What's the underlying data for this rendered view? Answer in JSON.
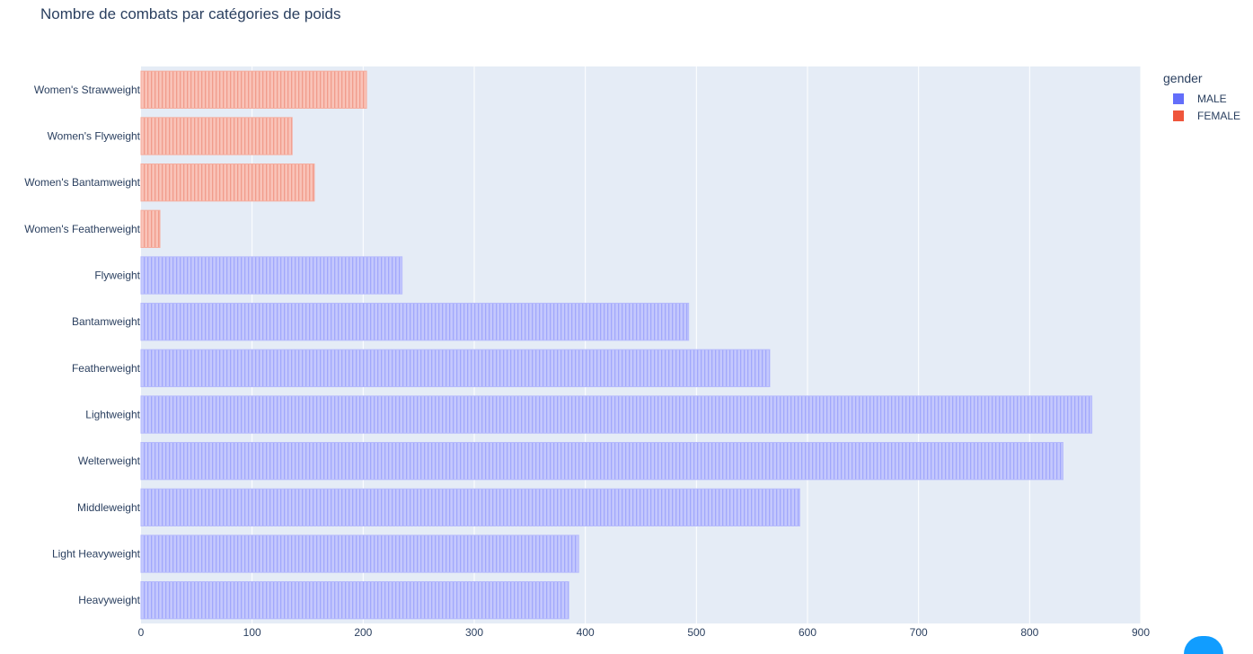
{
  "chart_data": {
    "type": "bar",
    "orientation": "horizontal",
    "title": "Nombre de combats par catégories de poids",
    "xlabel": "",
    "ylabel": "",
    "xlim": [
      0,
      900
    ],
    "xticks": [
      0,
      100,
      200,
      300,
      400,
      500,
      600,
      700,
      800,
      900
    ],
    "grid": true,
    "legend_title": "gender",
    "legend_position": "top-right",
    "categories": [
      "Women's Strawweight",
      "Women's Flyweight",
      "Women's Bantamweight",
      "Women's Featherweight",
      "Flyweight",
      "Bantamweight",
      "Featherweight",
      "Lightweight",
      "Welterweight",
      "Middleweight",
      "Light Heavyweight",
      "Heavyweight"
    ],
    "series": [
      {
        "name": "MALE",
        "color": "#636efa",
        "values": [
          null,
          null,
          null,
          null,
          235,
          493,
          566,
          856,
          830,
          593,
          394,
          385
        ]
      },
      {
        "name": "FEMALE",
        "color": "#ef553b",
        "values": [
          203,
          136,
          156,
          17,
          null,
          null,
          null,
          null,
          null,
          null,
          null,
          null
        ]
      }
    ]
  }
}
